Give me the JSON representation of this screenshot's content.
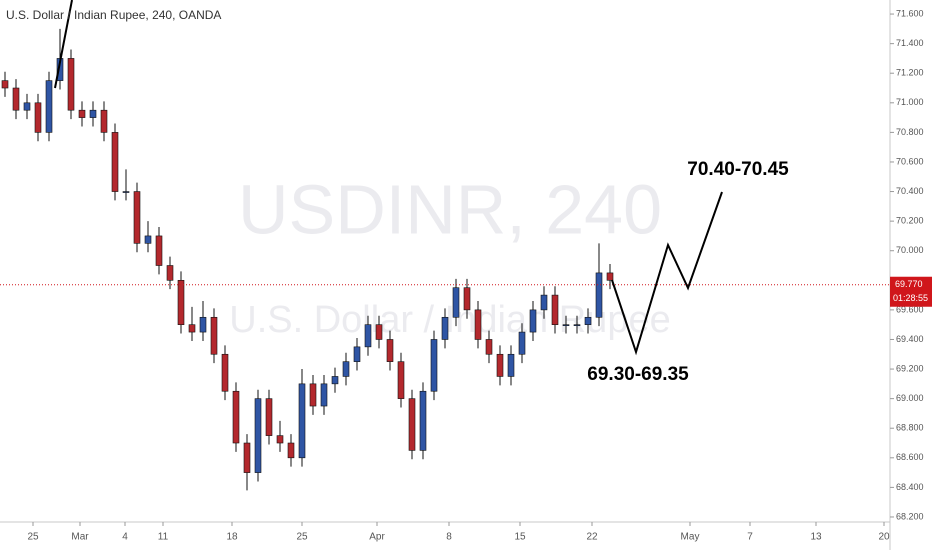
{
  "chart_data": {
    "type": "candlestick",
    "title": "U.S. Dollar / Indian Rupee, 240, OANDA",
    "watermark_symbol": "USDINR, 240",
    "watermark_name": "U.S. Dollar / Indian Rupee",
    "annotations": [
      "70.40-70.45",
      "69.30-69.35"
    ],
    "up_color": "#2f55a4",
    "down_color": "#b3282d",
    "xlim": [
      0,
      890
    ],
    "xticks": [
      {
        "value": 33,
        "label": "25"
      },
      {
        "value": 80,
        "label": "Mar"
      },
      {
        "value": 125,
        "label": "4"
      },
      {
        "value": 163,
        "label": "11"
      },
      {
        "value": 232,
        "label": "18"
      },
      {
        "value": 302,
        "label": "25"
      },
      {
        "value": 377,
        "label": "Apr"
      },
      {
        "value": 449,
        "label": "8"
      },
      {
        "value": 520,
        "label": "15"
      },
      {
        "value": 592,
        "label": "22"
      },
      {
        "value": 690,
        "label": "May"
      },
      {
        "value": 750,
        "label": "7"
      },
      {
        "value": 816,
        "label": "13"
      },
      {
        "value": 884,
        "label": "20"
      }
    ],
    "ylim": [
      68.166,
      71.695
    ],
    "yticks": [
      {
        "value": 68.2,
        "label": "68.200"
      },
      {
        "value": 68.4,
        "label": "68.400"
      },
      {
        "value": 68.6,
        "label": "68.600"
      },
      {
        "value": 68.8,
        "label": "68.800"
      },
      {
        "value": 69.0,
        "label": "69.000"
      },
      {
        "value": 69.2,
        "label": "69.200"
      },
      {
        "value": 69.4,
        "label": "69.400"
      },
      {
        "value": 69.6,
        "label": "69.600"
      },
      {
        "value": 70.0,
        "label": "70.000"
      },
      {
        "value": 70.2,
        "label": "70.200"
      },
      {
        "value": 70.4,
        "label": "70.400"
      },
      {
        "value": 70.6,
        "label": "70.600"
      },
      {
        "value": 70.8,
        "label": "70.800"
      },
      {
        "value": 71.0,
        "label": "71.000"
      },
      {
        "value": 71.2,
        "label": "71.200"
      },
      {
        "value": 71.4,
        "label": "71.400"
      },
      {
        "value": 71.6,
        "label": "71.600"
      }
    ],
    "last_price": {
      "value": 69.77,
      "label": "69.770"
    },
    "countdown": "01:28:55",
    "x": [
      5,
      16,
      27,
      38,
      49,
      60,
      71,
      82,
      93,
      104,
      115,
      126,
      137,
      148,
      159,
      170,
      181,
      192,
      203,
      214,
      225,
      236,
      247,
      258,
      269,
      280,
      291,
      302,
      313,
      324,
      335,
      346,
      357,
      368,
      379,
      390,
      401,
      412,
      423,
      434,
      445,
      456,
      467,
      478,
      489,
      500,
      511,
      522,
      533,
      544,
      555,
      566,
      577,
      588,
      599,
      610
    ],
    "open": [
      71.15,
      71.1,
      70.95,
      71.0,
      70.8,
      71.15,
      71.3,
      70.95,
      70.9,
      70.95,
      70.8,
      70.4,
      70.4,
      70.05,
      70.1,
      69.9,
      69.8,
      69.5,
      69.45,
      69.55,
      69.3,
      69.05,
      68.7,
      68.5,
      69.0,
      68.75,
      68.7,
      68.6,
      69.1,
      68.95,
      69.1,
      69.15,
      69.25,
      69.35,
      69.5,
      69.4,
      69.25,
      69.0,
      68.65,
      69.05,
      69.4,
      69.55,
      69.75,
      69.6,
      69.4,
      69.3,
      69.15,
      69.3,
      69.45,
      69.6,
      69.7,
      69.5,
      69.5,
      69.5,
      69.55,
      69.85
    ],
    "high": [
      71.21,
      71.16,
      71.06,
      71.06,
      71.21,
      71.5,
      71.36,
      71.01,
      71.01,
      71.01,
      70.86,
      70.55,
      70.46,
      70.2,
      70.16,
      69.96,
      69.86,
      69.62,
      69.66,
      69.61,
      69.36,
      69.11,
      68.76,
      69.06,
      69.06,
      68.85,
      68.76,
      69.2,
      69.16,
      69.16,
      69.21,
      69.31,
      69.41,
      69.56,
      69.56,
      69.46,
      69.31,
      69.06,
      69.11,
      69.46,
      69.61,
      69.81,
      69.81,
      69.66,
      69.46,
      69.36,
      69.36,
      69.51,
      69.66,
      69.76,
      69.76,
      69.56,
      69.56,
      69.61,
      70.05,
      69.91
    ],
    "low": [
      71.04,
      70.89,
      70.89,
      70.74,
      70.74,
      71.09,
      70.89,
      70.84,
      70.84,
      70.74,
      70.34,
      70.34,
      69.99,
      69.99,
      69.84,
      69.74,
      69.44,
      69.39,
      69.39,
      69.24,
      68.99,
      68.64,
      68.38,
      68.44,
      68.69,
      68.64,
      68.54,
      68.54,
      68.89,
      68.89,
      69.04,
      69.09,
      69.19,
      69.29,
      69.34,
      69.19,
      68.94,
      68.59,
      68.59,
      68.99,
      69.34,
      69.49,
      69.54,
      69.34,
      69.24,
      69.09,
      69.09,
      69.24,
      69.39,
      69.54,
      69.44,
      69.44,
      69.44,
      69.44,
      69.49,
      69.74
    ],
    "close": [
      71.1,
      70.95,
      71.0,
      70.8,
      71.15,
      71.3,
      70.95,
      70.9,
      70.95,
      70.8,
      70.4,
      70.4,
      70.05,
      70.1,
      69.9,
      69.8,
      69.5,
      69.45,
      69.55,
      69.3,
      69.05,
      68.7,
      68.5,
      69.0,
      68.75,
      68.7,
      68.6,
      69.1,
      68.95,
      69.1,
      69.15,
      69.25,
      69.35,
      69.5,
      69.4,
      69.25,
      69.0,
      68.65,
      69.05,
      69.4,
      69.55,
      69.75,
      69.6,
      69.4,
      69.3,
      69.15,
      69.3,
      69.45,
      69.6,
      69.7,
      69.5,
      69.5,
      69.5,
      69.55,
      69.85,
      69.8
    ]
  }
}
